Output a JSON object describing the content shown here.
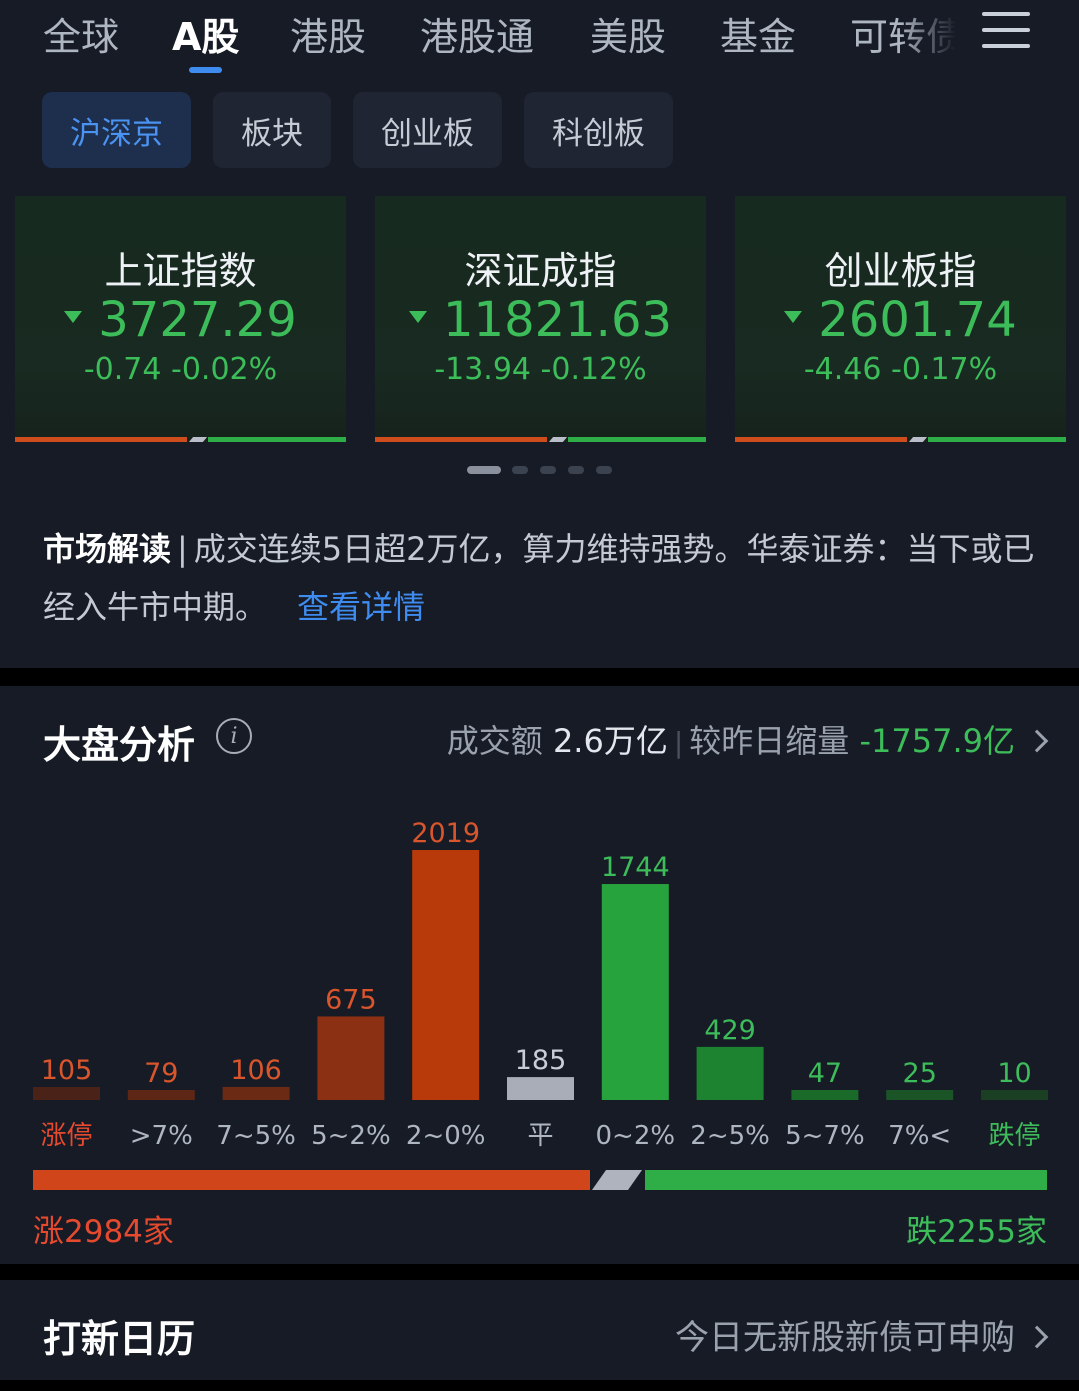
{
  "tabs": [
    {
      "label": "全球",
      "active": false
    },
    {
      "label": "A股",
      "active": true
    },
    {
      "label": "港股",
      "active": false
    },
    {
      "label": "港股通",
      "active": false
    },
    {
      "label": "美股",
      "active": false
    },
    {
      "label": "基金",
      "active": false
    },
    {
      "label": "可转债",
      "active": false
    }
  ],
  "subtabs": [
    {
      "label": "沪深京",
      "active": true
    },
    {
      "label": "板块",
      "active": false
    },
    {
      "label": "创业板",
      "active": false
    },
    {
      "label": "科创板",
      "active": false
    }
  ],
  "indices": [
    {
      "name": "上证指数",
      "price": "3727.29",
      "change": "-0.74 -0.02%"
    },
    {
      "name": "深证成指",
      "price": "11821.63",
      "change": "-13.94 -0.12%"
    },
    {
      "name": "创业板指",
      "price": "2601.74",
      "change": "-4.46 -0.17%"
    }
  ],
  "market": {
    "label": "市场解读",
    "text": "成交连续5日超2万亿，算力维持强势。华泰证券：当下或已经入牛市中期。",
    "link": "查看详情"
  },
  "analysis": {
    "title": "大盘分析",
    "turnover_label": "成交额",
    "turnover_value": "2.6万亿",
    "compare_label": "较昨日缩量",
    "compare_value": "-1757.9亿",
    "rise_text": "涨2984家",
    "fall_text": "跌2255家"
  },
  "chart_data": {
    "type": "bar",
    "categories": [
      "涨停",
      ">7%",
      "7~5%",
      "5~2%",
      "2~0%",
      "平",
      "0~2%",
      "2~5%",
      "5~7%",
      "7%<",
      "跌停"
    ],
    "values": [
      105,
      79,
      106,
      675,
      2019,
      185,
      1744,
      429,
      47,
      25,
      10
    ],
    "colors": [
      "#4a2218",
      "#5e2715",
      "#6b2a13",
      "#8b3012",
      "#b83a0b",
      "#a8adb7",
      "#27a33d",
      "#1e8330",
      "#1a6a29",
      "#1b5426",
      "#1a3f22"
    ],
    "value_colors": [
      "#d9552c",
      "#d9552c",
      "#d9552c",
      "#d9552c",
      "#d9552c",
      "#c9ced6",
      "#3dbd5a",
      "#3dbd5a",
      "#3dbd5a",
      "#3dbd5a",
      "#3dbd5a"
    ],
    "label_colors": [
      "#e64a2e",
      "#aeb6c2",
      "#aeb6c2",
      "#aeb6c2",
      "#aeb6c2",
      "#aeb6c2",
      "#aeb6c2",
      "#aeb6c2",
      "#aeb6c2",
      "#aeb6c2",
      "#3dbd5a"
    ]
  },
  "ipo": {
    "title": "打新日历",
    "note": "今日无新股新债可申购"
  }
}
